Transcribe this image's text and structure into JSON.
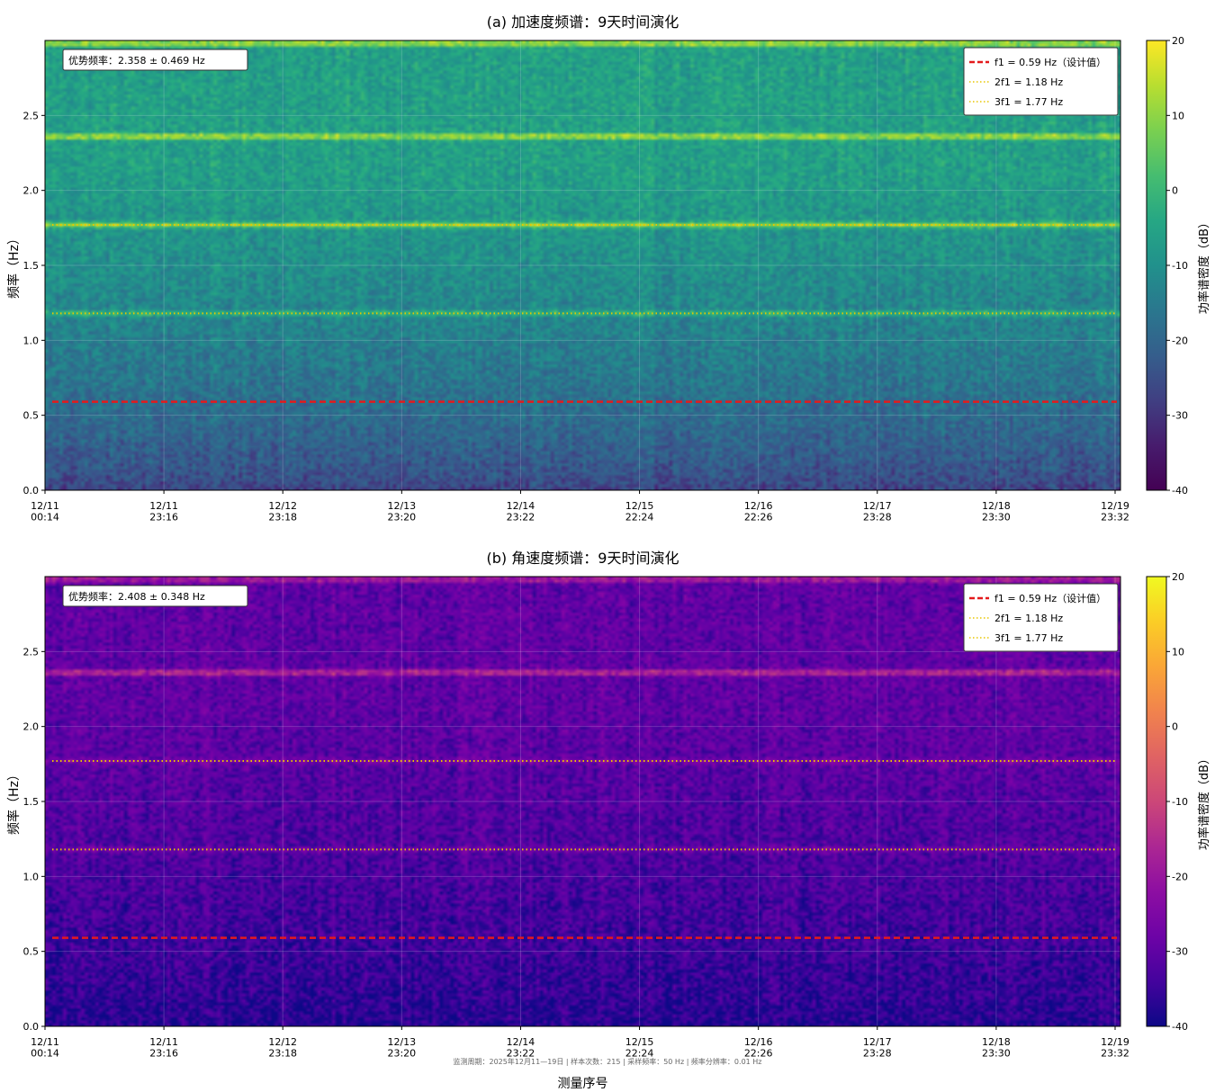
{
  "chart_data": [
    {
      "type": "heatmap",
      "title": "(a) 加速度频谱：9天时间演化",
      "ylabel": "频率（Hz）",
      "xlabel": "",
      "colorbar_label": "功率谱密度（dB）",
      "colormap": "viridis",
      "clim": [
        -40,
        20
      ],
      "colorbar_ticks": [
        "20",
        "10",
        "0",
        "-10",
        "-20",
        "-30",
        "-40"
      ],
      "ylim": [
        0,
        3.0
      ],
      "y_ticks": [
        "0.0",
        "0.5",
        "1.0",
        "1.5",
        "2.0",
        "2.5"
      ],
      "x_ticks": [
        "12/11\n00:14",
        "12/11\n23:16",
        "12/12\n23:18",
        "12/13\n23:20",
        "12/14\n23:22",
        "12/15\n22:24",
        "12/16\n22:26",
        "12/17\n23:28",
        "12/18\n23:30",
        "12/19\n23:32"
      ],
      "annotation": "优势频率：2.358 ± 0.469 Hz",
      "dominant_frequency_hz": 2.358,
      "dominant_frequency_std_hz": 0.469,
      "bands": [
        {
          "freq": 2.36,
          "level_db": 18
        },
        {
          "freq": 1.77,
          "level_db": 14
        },
        {
          "freq": 1.18,
          "level_db": 2
        },
        {
          "freq": 2.98,
          "level_db": 18
        }
      ],
      "background_db_low": -28,
      "background_db_high": -6,
      "legend": [
        "f1 = 0.59 Hz（设计值）",
        "2f1 = 1.18 Hz",
        "3f1 = 1.77 Hz"
      ],
      "reference_lines": [
        {
          "y": 0.59,
          "style": "dashed",
          "color": "#e41a1c"
        },
        {
          "y": 1.18,
          "style": "dotted",
          "color": "#e8c600"
        },
        {
          "y": 1.77,
          "style": "dotted",
          "color": "#e8c600"
        }
      ],
      "grid": true,
      "legend_position": "top-right"
    },
    {
      "type": "heatmap",
      "title": "(b) 角速度频谱：9天时间演化",
      "ylabel": "频率（Hz）",
      "xlabel": "测量序号",
      "colorbar_label": "功率谱密度（dB）",
      "colormap": "plasma",
      "clim": [
        -40,
        20
      ],
      "colorbar_ticks": [
        "20",
        "10",
        "0",
        "-10",
        "-20",
        "-30",
        "-40"
      ],
      "ylim": [
        0,
        3.0
      ],
      "y_ticks": [
        "0.0",
        "0.5",
        "1.0",
        "1.5",
        "2.0",
        "2.5"
      ],
      "x_ticks": [
        "12/11\n00:14",
        "12/11\n23:16",
        "12/12\n23:18",
        "12/13\n23:20",
        "12/14\n23:22",
        "12/15\n22:24",
        "12/16\n22:26",
        "12/17\n23:28",
        "12/18\n23:30",
        "12/19\n23:32"
      ],
      "annotation": "优势频率：2.408 ± 0.348 Hz",
      "dominant_frequency_hz": 2.408,
      "dominant_frequency_std_hz": 0.348,
      "bands": [
        {
          "freq": 2.36,
          "level_db": -10
        },
        {
          "freq": 2.98,
          "level_db": -14
        },
        {
          "freq": 1.77,
          "level_db": -24
        },
        {
          "freq": 1.18,
          "level_db": -26
        }
      ],
      "background_db_low": -38,
      "background_db_high": -30,
      "legend": [
        "f1 = 0.59 Hz（设计值）",
        "2f1 = 1.18 Hz",
        "3f1 = 1.77 Hz"
      ],
      "reference_lines": [
        {
          "y": 0.59,
          "style": "dashed",
          "color": "#e41a1c"
        },
        {
          "y": 1.18,
          "style": "dotted",
          "color": "#e8c600"
        },
        {
          "y": 1.77,
          "style": "dotted",
          "color": "#e8c600"
        }
      ],
      "grid": true,
      "legend_position": "top-right"
    }
  ],
  "footer_note": "监测周期：2025年12月11—19日 | 样本次数：215 | 采样频率：50 Hz | 频率分辨率：0.01 Hz"
}
